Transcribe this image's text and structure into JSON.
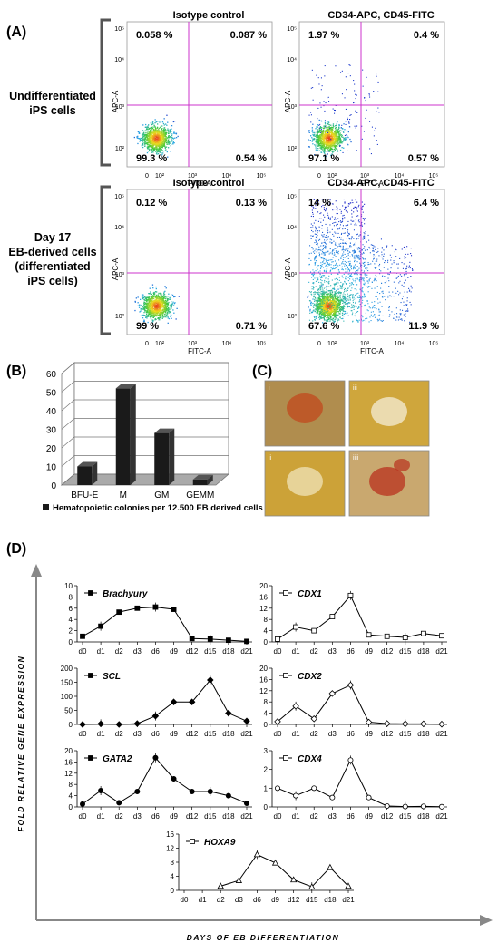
{
  "panels": {
    "A": "(A)",
    "B": "(B)",
    "C": "(C)",
    "D": "(D)"
  },
  "flow": {
    "row_labels": [
      [
        "Undifferentiated",
        "iPS cells"
      ],
      [
        "Day 17",
        "EB-derived cells",
        "(differentiated",
        "iPS cells)"
      ]
    ],
    "axis_x": "FITC-A",
    "axis_y": "APC-A",
    "x_ticks": [
      "0",
      "10²",
      "10³",
      "10⁴",
      "10⁵"
    ],
    "y_ticks": [
      "10²",
      "10³",
      "10⁴",
      "10⁵"
    ],
    "plots": [
      {
        "title": "Isotype control",
        "q": [
          "0.058 %",
          "0.087 %",
          "99.3 %",
          "0.54 %"
        ],
        "spread": 0
      },
      {
        "title": "CD34-APC, CD45-FITC",
        "q": [
          "1.97 %",
          "0.4 %",
          "97.1 %",
          "0.57 %"
        ],
        "spread": 1
      },
      {
        "title": "Isotype control",
        "q": [
          "0.12 %",
          "0.13 %",
          "99 %",
          "0.71 %"
        ],
        "spread": 0
      },
      {
        "title": "CD34-APC, CD45-FITC",
        "q": [
          "14 %",
          "6.4 %",
          "67.6 %",
          "11.9 %"
        ],
        "spread": 2
      }
    ]
  },
  "chart_data": [
    {
      "type": "bar",
      "categories": [
        "BFU-E",
        "M",
        "GM",
        "GEMM"
      ],
      "values": [
        10,
        52,
        28,
        3
      ],
      "ylim": [
        0,
        60
      ],
      "yticks": [
        "0",
        "10",
        "20",
        "30",
        "40",
        "50",
        "60"
      ],
      "legend": "Hematopoietic colonies per 12.500 EB derived cells",
      "grid": true
    },
    {
      "type": "line",
      "x": [
        "d0",
        "d1",
        "d2",
        "d3",
        "d6",
        "d9",
        "d12",
        "d15",
        "d18",
        "d21"
      ],
      "xlabel": "DAYS OF EB DIFFERENTIATION",
      "ylabel": "FOLD RELATIVE GENE EXPRESSION",
      "series": [
        {
          "name": "Brachyury",
          "values": [
            1,
            2.8,
            5.3,
            6,
            6.2,
            5.8,
            0.6,
            0.5,
            0.3,
            0.1
          ],
          "ylim": [
            0,
            10
          ],
          "yticks": [
            "0",
            "2",
            "4",
            "6",
            "8",
            "10"
          ],
          "marker": "square-filled"
        },
        {
          "name": "CDX1",
          "values": [
            1,
            5.3,
            4,
            9,
            16.5,
            2.5,
            2,
            1.6,
            3,
            2.2
          ],
          "ylim": [
            0,
            20
          ],
          "yticks": [
            "0",
            "4",
            "8",
            "12",
            "16",
            "20"
          ],
          "marker": "square-open"
        },
        {
          "name": "SCL",
          "values": [
            0,
            2,
            0,
            3,
            30,
            80,
            80,
            158,
            40,
            12
          ],
          "ylim": [
            0,
            200
          ],
          "yticks": [
            "0",
            "50",
            "100",
            "150",
            "200"
          ],
          "marker": "diamond-filled"
        },
        {
          "name": "CDX2",
          "values": [
            1,
            6.5,
            2,
            11,
            14,
            0.8,
            0.3,
            0.2,
            0.2,
            0.1
          ],
          "ylim": [
            0,
            20
          ],
          "yticks": [
            "0",
            "4",
            "8",
            "12",
            "16",
            "20"
          ],
          "marker": "diamond-open"
        },
        {
          "name": "GATA2",
          "values": [
            1,
            5.8,
            1.5,
            5.5,
            17.5,
            10,
            5.5,
            5.5,
            4,
            1.3
          ],
          "ylim": [
            0,
            20
          ],
          "yticks": [
            "0",
            "4",
            "8",
            "12",
            "16",
            "20"
          ],
          "marker": "circle-filled"
        },
        {
          "name": "CDX4",
          "values": [
            1,
            0.6,
            1,
            0.5,
            2.5,
            0.5,
            0.05,
            0.02,
            0.03,
            0.01
          ],
          "ylim": [
            0,
            3
          ],
          "yticks": [
            "0",
            "1",
            "2",
            "3"
          ],
          "marker": "circle-open"
        },
        {
          "name": "HOXA9",
          "values": [
            null,
            null,
            1.2,
            2.8,
            10.2,
            7.8,
            3,
            1,
            6.5,
            1.2
          ],
          "ylim": [
            0,
            16
          ],
          "yticks": [
            "0",
            "4",
            "8",
            "12",
            "16"
          ],
          "marker": "triangle-open"
        }
      ]
    }
  ],
  "micrographs": [
    {
      "label": "i",
      "bg": "#b08d4e",
      "spot": "#c24a1e"
    },
    {
      "label": "iii",
      "bg": "#cfa63c",
      "spot": "#f4ecd6"
    },
    {
      "label": "ii",
      "bg": "#cca238",
      "spot": "#f0e3b8"
    },
    {
      "label": "iiii",
      "bg": "#c9a86f",
      "spot": "#b8321e"
    }
  ],
  "colors": {
    "gate": "#cc33cc",
    "bar": "#1a1a1a",
    "micro_border": "#888888"
  }
}
